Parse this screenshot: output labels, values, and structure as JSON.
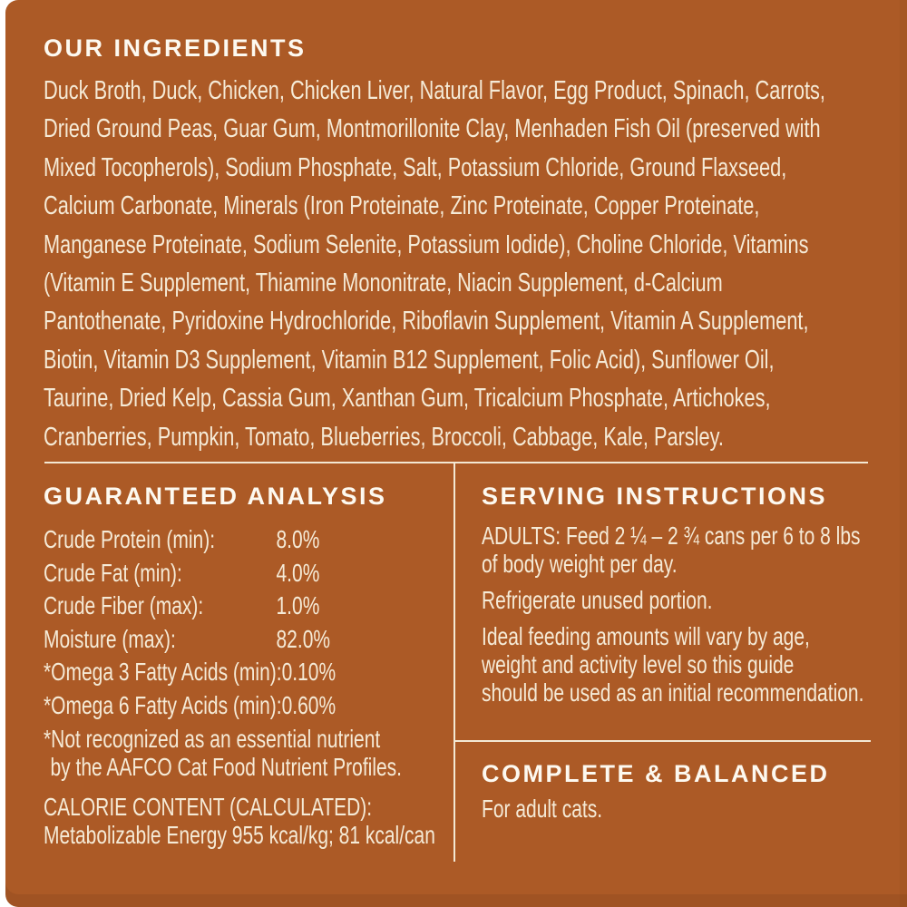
{
  "colors": {
    "background": "#ac5a26",
    "body_text": "#f5ead6",
    "heading_text": "#fdf9f0",
    "divider": "#f3e8d3",
    "page_margin": "#ffffff"
  },
  "ingredients": {
    "heading": "OUR INGREDIENTS",
    "lines": [
      "Duck Broth, Duck, Chicken, Chicken Liver, Natural Flavor, Egg Product, Spinach, Carrots,",
      "Dried Ground Peas, Guar Gum, Montmorillonite Clay, Menhaden Fish Oil (preserved with",
      "Mixed Tocopherols), Sodium Phosphate, Salt, Potassium Chloride, Ground Flaxseed,",
      "Calcium Carbonate, Minerals (Iron Proteinate, Zinc Proteinate, Copper Proteinate,",
      "Manganese Proteinate, Sodium Selenite, Potassium Iodide), Choline Chloride, Vitamins",
      "(Vitamin E Supplement, Thiamine Mononitrate, Niacin Supplement, d-Calcium",
      "Pantothenate, Pyridoxine Hydrochloride, Riboflavin Supplement, Vitamin A Supplement,",
      "Biotin, Vitamin D3 Supplement, Vitamin B12 Supplement, Folic Acid), Sunflower Oil,",
      "Taurine, Dried Kelp, Cassia Gum, Xanthan Gum, Tricalcium Phosphate, Artichokes,",
      "Cranberries, Pumpkin, Tomato, Blueberries, Broccoli, Cabbage, Kale, Parsley."
    ]
  },
  "guaranteed_analysis": {
    "heading": "GUARANTEED ANALYSIS",
    "rows": [
      {
        "label": "Crude Protein (min):",
        "value": "8.0%"
      },
      {
        "label": "Crude Fat (min):",
        "value": "4.0%"
      },
      {
        "label": "Crude Fiber (max):",
        "value": "1.0%"
      },
      {
        "label": "Moisture (max):",
        "value": "82.0%"
      },
      {
        "label": "*Omega 3 Fatty Acids (min):",
        "value": "0.10%"
      },
      {
        "label": "*Omega 6 Fatty Acids (min):",
        "value": "0.60%"
      }
    ],
    "footnote_line1": "*Not recognized as an essential nutrient",
    "footnote_line2": "by the AAFCO Cat Food Nutrient Profiles.",
    "calorie_heading": "CALORIE CONTENT (CALCULATED):",
    "calorie_value": "Metabolizable Energy 955 kcal/kg; 81 kcal/can"
  },
  "serving_instructions": {
    "heading": "SERVING INSTRUCTIONS",
    "adults_line1": "ADULTS: Feed 2 ¼ – 2 ¾ cans per 6 to 8 lbs",
    "adults_line2": "of body weight per day.",
    "refrigerate": "Refrigerate unused portion.",
    "ideal_line1": "Ideal feeding amounts will vary by age,",
    "ideal_line2": "weight and activity level so this guide",
    "ideal_line3": "should be used as an initial recommendation."
  },
  "complete_balanced": {
    "heading": "COMPLETE & BALANCED",
    "text": "For adult cats."
  }
}
